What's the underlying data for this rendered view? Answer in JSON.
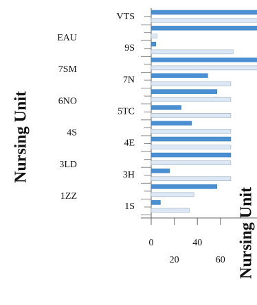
{
  "chart_data": {
    "type": "bar",
    "orientation": "horizontal",
    "axis_labels": [
      "Nursing Unit",
      "Nursing Unit"
    ],
    "categories": [
      "VTS",
      "EAU",
      "9S",
      "7SM",
      "7N",
      "6NO",
      "5TC",
      "4S",
      "4E",
      "3LD",
      "3H",
      "1ZZ",
      "1S"
    ],
    "series": [
      {
        "color": "#4a8fd2",
        "values": [
          95,
          95,
          4,
          95,
          49,
          57,
          26,
          35,
          69,
          69,
          16,
          57,
          8
        ]
      },
      {
        "color": "#dce8f5",
        "values": [
          95,
          5,
          71,
          95,
          69,
          69,
          69,
          69,
          69,
          69,
          69,
          37,
          33
        ]
      }
    ],
    "xlim": [
      0,
      90
    ],
    "xticks": [
      0,
      20,
      40,
      60
    ]
  }
}
